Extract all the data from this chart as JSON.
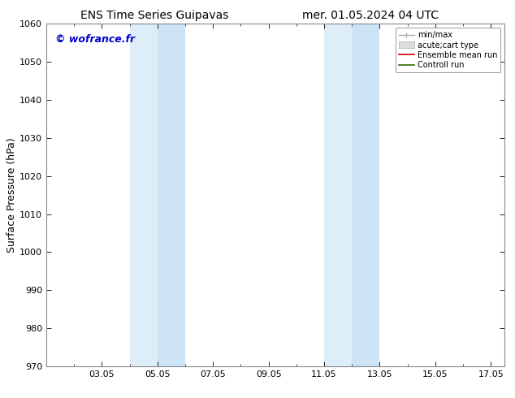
{
  "title_left": "ENS Time Series Guipavas",
  "title_right": "mer. 01.05.2024 04 UTC",
  "ylabel": "Surface Pressure (hPa)",
  "ylim": [
    970,
    1060
  ],
  "yticks": [
    970,
    980,
    990,
    1000,
    1010,
    1020,
    1030,
    1040,
    1050,
    1060
  ],
  "xlim": [
    0.0,
    16.5
  ],
  "xtick_labels": [
    "03.05",
    "05.05",
    "07.05",
    "09.05",
    "11.05",
    "13.05",
    "15.05",
    "17.05"
  ],
  "xtick_positions": [
    2,
    4,
    6,
    8,
    10,
    12,
    14,
    16
  ],
  "shaded_bands": [
    {
      "xstart": 3.0,
      "xend": 4.0,
      "color": "#ddeef8"
    },
    {
      "xstart": 4.0,
      "xend": 5.0,
      "color": "#cce4f5"
    },
    {
      "xstart": 10.0,
      "xend": 11.0,
      "color": "#ddeef8"
    },
    {
      "xstart": 11.0,
      "xend": 12.0,
      "color": "#cce4f5"
    }
  ],
  "watermark": "© wofrance.fr",
  "watermark_color": "#0000cc",
  "legend_entries": [
    {
      "label": "min/max",
      "type": "hline",
      "color": "#aaaaaa"
    },
    {
      "label": "acute;cart type",
      "type": "rect",
      "color": "#dddddd"
    },
    {
      "label": "Ensemble mean run",
      "type": "line",
      "color": "#cc0000"
    },
    {
      "label": "Controll run",
      "type": "line",
      "color": "#006600"
    }
  ],
  "bg_color": "#ffffff",
  "plot_bg_color": "#ffffff",
  "spine_color": "#888888",
  "tick_color": "#000000",
  "title_fontsize": 10,
  "ylabel_fontsize": 9,
  "tick_fontsize": 8,
  "watermark_fontsize": 9,
  "legend_fontsize": 7
}
